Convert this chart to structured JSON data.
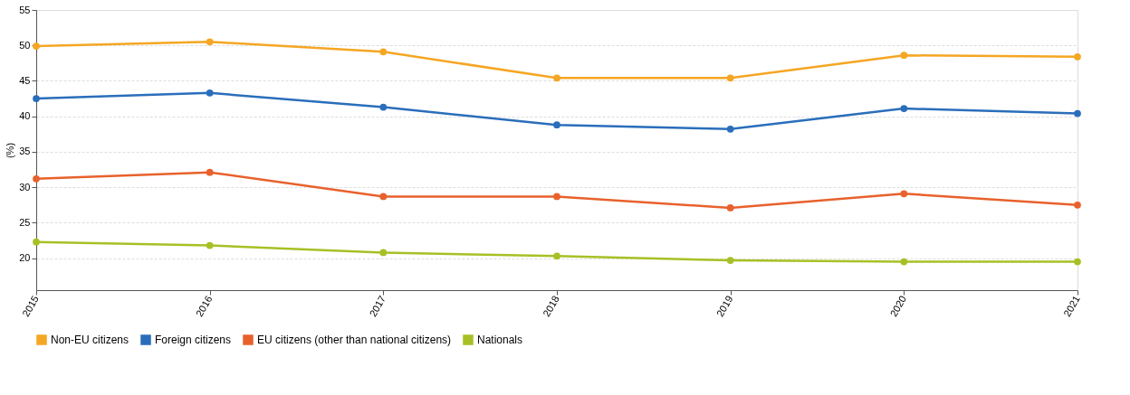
{
  "chart_data": {
    "type": "line",
    "ylabel": "(%)",
    "categories": [
      "2015",
      "2016",
      "2017",
      "2018",
      "2019",
      "2020",
      "2021"
    ],
    "series": [
      {
        "name": "Non-EU citizens",
        "color": "#f5a623",
        "values": [
          49.9,
          50.5,
          49.1,
          45.4,
          45.4,
          48.6,
          48.4
        ]
      },
      {
        "name": "Foreign citizens",
        "color": "#2a6ebb",
        "values": [
          42.5,
          43.3,
          41.3,
          38.8,
          38.2,
          41.1,
          40.4
        ]
      },
      {
        "name": "EU citizens (other than national citizens)",
        "color": "#e8612c",
        "values": [
          31.2,
          32.1,
          28.7,
          28.7,
          27.1,
          29.1,
          27.5
        ]
      },
      {
        "name": "Nationals",
        "color": "#a8c025",
        "values": [
          22.3,
          21.8,
          20.8,
          20.3,
          19.7,
          19.5,
          19.5
        ]
      }
    ],
    "ylim": [
      15.5,
      55
    ],
    "yticks": [
      20,
      25,
      30,
      35,
      40,
      45,
      50,
      55
    ],
    "grid": "y",
    "legend": "bottom",
    "marker": "circle",
    "line_style": "solid"
  }
}
